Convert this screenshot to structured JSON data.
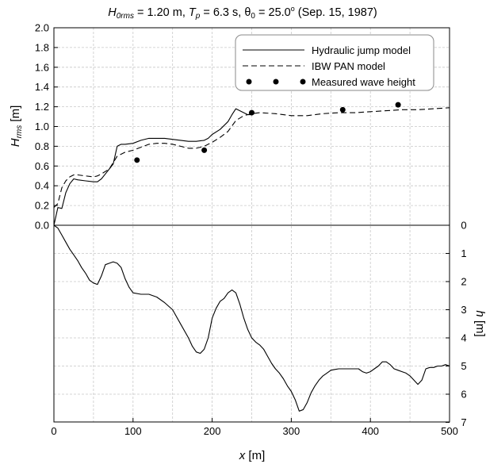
{
  "chart_data": {
    "type": "line",
    "title": {
      "prefix": "H",
      "prefix_sub": "0rms",
      "part1": " = 1.20 m, ",
      "tp": "T",
      "tp_sub": "p",
      "part2": " = 6.3 s, ",
      "theta": "θ",
      "theta_sub": "0",
      "part3": " = 25.0",
      "deg": "o",
      "part4": " (Sep. 15, 1987)"
    },
    "xlabel": {
      "var": "x",
      "unit": " [m]"
    },
    "ylabel_top": {
      "var": "H",
      "sub": "rms",
      "unit": " [m]"
    },
    "ylabel_bottom": {
      "var": "h",
      "unit": " [m]"
    },
    "xlim": [
      0,
      500
    ],
    "top_ylim": [
      0,
      2.0
    ],
    "bottom_ylim": [
      0,
      7
    ],
    "x_ticks": [
      "0",
      "100",
      "200",
      "300",
      "400",
      "500"
    ],
    "top_y_ticks": [
      "0.0",
      "0.2",
      "0.4",
      "0.6",
      "0.8",
      "1.0",
      "1.2",
      "1.4",
      "1.6",
      "1.8",
      "2.0"
    ],
    "bottom_y_ticks": [
      "0",
      "1",
      "2",
      "3",
      "4",
      "5",
      "6",
      "7"
    ],
    "grid": true,
    "legend": {
      "position": "top-right",
      "entries": [
        "Hydraulic jump model",
        "IBW PAN model",
        "Measured wave height"
      ]
    },
    "series": [
      {
        "name": "Hydraulic jump model",
        "style": "solid",
        "x": [
          0,
          5,
          10,
          15,
          20,
          25,
          30,
          40,
          50,
          55,
          60,
          65,
          70,
          75,
          80,
          85,
          90,
          100,
          110,
          120,
          130,
          140,
          150,
          160,
          170,
          180,
          190,
          195,
          200,
          210,
          220,
          225,
          230,
          235,
          240,
          245,
          250
        ],
        "y": [
          0.0,
          0.18,
          0.17,
          0.33,
          0.42,
          0.47,
          0.46,
          0.45,
          0.44,
          0.44,
          0.47,
          0.52,
          0.57,
          0.62,
          0.8,
          0.82,
          0.82,
          0.83,
          0.86,
          0.88,
          0.88,
          0.88,
          0.87,
          0.86,
          0.85,
          0.85,
          0.86,
          0.88,
          0.92,
          0.97,
          1.05,
          1.12,
          1.18,
          1.16,
          1.14,
          1.12,
          1.12
        ]
      },
      {
        "name": "IBW PAN model",
        "style": "dashed",
        "x": [
          0,
          5,
          10,
          15,
          20,
          25,
          30,
          40,
          50,
          55,
          60,
          70,
          80,
          90,
          100,
          110,
          120,
          130,
          140,
          150,
          160,
          170,
          180,
          190,
          200,
          210,
          220,
          230,
          240,
          250,
          260,
          280,
          300,
          320,
          340,
          360,
          380,
          400,
          420,
          440,
          460,
          480,
          500
        ],
        "y": [
          0.18,
          0.22,
          0.38,
          0.45,
          0.49,
          0.51,
          0.51,
          0.5,
          0.49,
          0.5,
          0.52,
          0.57,
          0.7,
          0.74,
          0.76,
          0.79,
          0.82,
          0.83,
          0.83,
          0.82,
          0.8,
          0.78,
          0.78,
          0.8,
          0.84,
          0.89,
          0.95,
          1.06,
          1.11,
          1.13,
          1.14,
          1.13,
          1.11,
          1.11,
          1.13,
          1.14,
          1.14,
          1.15,
          1.16,
          1.17,
          1.17,
          1.18,
          1.19
        ]
      }
    ],
    "measured": {
      "name": "Measured wave height",
      "x": [
        105,
        190,
        250,
        365,
        435
      ],
      "y": [
        0.66,
        0.76,
        1.14,
        1.17,
        1.22
      ]
    },
    "bathymetry": {
      "name": "h",
      "x": [
        0,
        5,
        10,
        15,
        20,
        25,
        30,
        35,
        40,
        45,
        50,
        55,
        60,
        65,
        70,
        75,
        80,
        85,
        90,
        95,
        100,
        110,
        120,
        130,
        140,
        150,
        160,
        170,
        175,
        180,
        185,
        190,
        195,
        200,
        205,
        210,
        215,
        220,
        225,
        230,
        235,
        240,
        245,
        250,
        255,
        260,
        265,
        270,
        275,
        280,
        285,
        290,
        295,
        300,
        305,
        310,
        315,
        320,
        325,
        330,
        335,
        340,
        345,
        350,
        355,
        360,
        365,
        370,
        375,
        380,
        385,
        390,
        395,
        400,
        405,
        410,
        415,
        420,
        425,
        430,
        435,
        440,
        445,
        450,
        455,
        460,
        465,
        470,
        475,
        480,
        485,
        490,
        495,
        500
      ],
      "y": [
        0.0,
        0.1,
        0.35,
        0.6,
        0.85,
        1.05,
        1.25,
        1.5,
        1.7,
        1.95,
        2.05,
        2.1,
        1.8,
        1.4,
        1.35,
        1.3,
        1.35,
        1.5,
        1.9,
        2.2,
        2.4,
        2.45,
        2.45,
        2.55,
        2.75,
        3.0,
        3.5,
        4.0,
        4.3,
        4.5,
        4.55,
        4.4,
        4.0,
        3.3,
        2.95,
        2.7,
        2.6,
        2.4,
        2.3,
        2.4,
        2.8,
        3.3,
        3.7,
        4.0,
        4.15,
        4.25,
        4.4,
        4.65,
        4.9,
        5.1,
        5.25,
        5.45,
        5.7,
        5.9,
        6.2,
        6.6,
        6.55,
        6.3,
        5.95,
        5.7,
        5.5,
        5.35,
        5.25,
        5.15,
        5.12,
        5.1,
        5.1,
        5.1,
        5.1,
        5.1,
        5.1,
        5.2,
        5.25,
        5.2,
        5.1,
        5.0,
        4.85,
        4.85,
        4.95,
        5.1,
        5.15,
        5.2,
        5.25,
        5.35,
        5.5,
        5.65,
        5.5,
        5.1,
        5.05,
        5.05,
        5.0,
        5.0,
        4.95,
        5.0
      ]
    }
  }
}
